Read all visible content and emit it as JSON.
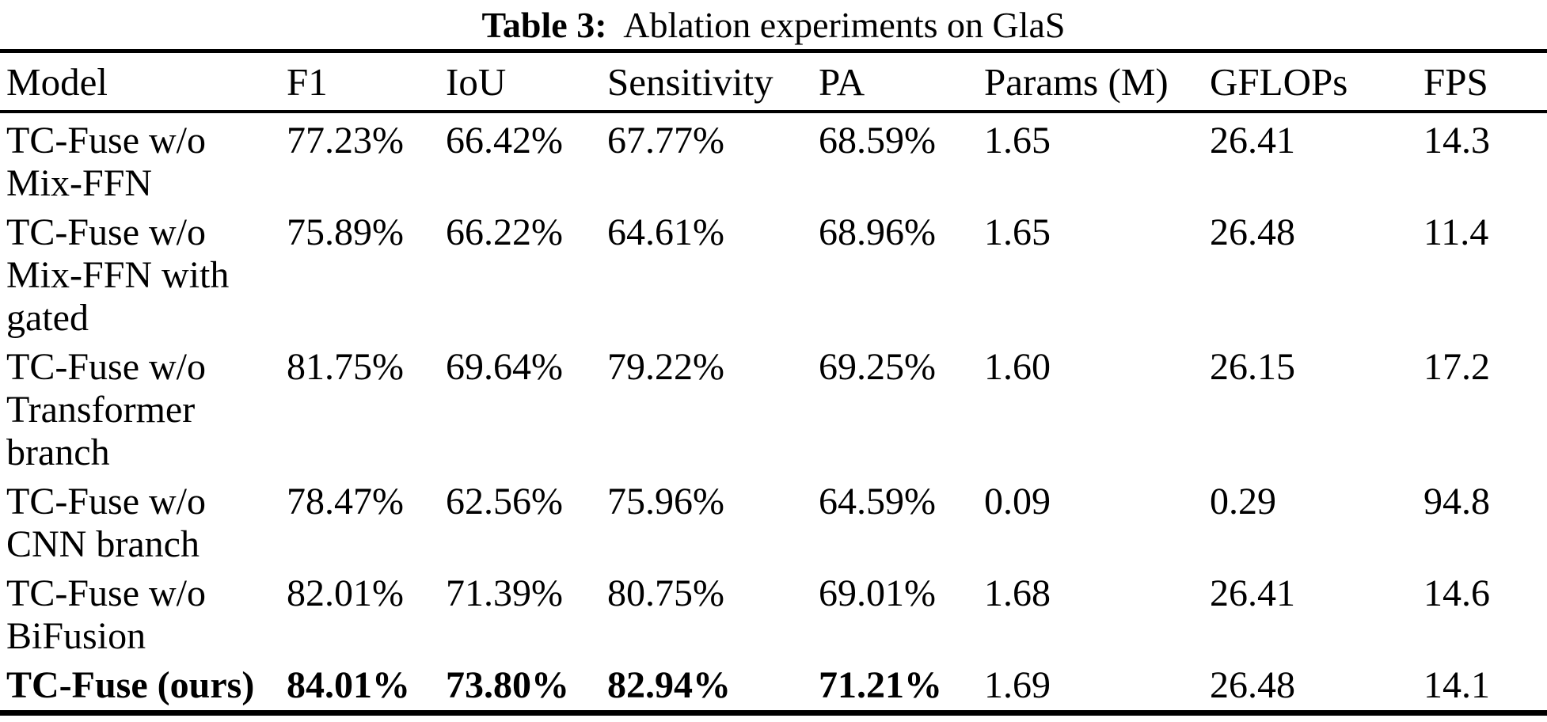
{
  "caption": {
    "label": "Table 3:",
    "text": "Ablation experiments on GlaS"
  },
  "table": {
    "columns": [
      "Model",
      "F1",
      "IoU",
      "Sensitivity",
      "PA",
      "Params (M)",
      "GFLOPs",
      "FPS"
    ],
    "rows": [
      {
        "model": "TC-Fuse w/o\nMix-FFN",
        "values": [
          "77.23%",
          "66.42%",
          "67.77%",
          "68.59%",
          "1.65",
          "26.41",
          "14.3"
        ],
        "emphasized": false
      },
      {
        "model": "TC-Fuse w/o\nMix-FFN with\ngated",
        "values": [
          "75.89%",
          "66.22%",
          "64.61%",
          "68.96%",
          "1.65",
          "26.48",
          "11.4"
        ],
        "emphasized": false
      },
      {
        "model": "TC-Fuse w/o\nTransformer\nbranch",
        "values": [
          "81.75%",
          "69.64%",
          "79.22%",
          "69.25%",
          "1.60",
          "26.15",
          "17.2"
        ],
        "emphasized": false
      },
      {
        "model": "TC-Fuse w/o\nCNN branch",
        "values": [
          "78.47%",
          "62.56%",
          "75.96%",
          "64.59%",
          "0.09",
          "0.29",
          "94.8"
        ],
        "emphasized": false
      },
      {
        "model": "TC-Fuse w/o\nBiFusion",
        "values": [
          "82.01%",
          "71.39%",
          "80.75%",
          "69.01%",
          "1.68",
          "26.41",
          "14.6"
        ],
        "emphasized": false
      },
      {
        "model": "TC-Fuse (ours)",
        "values": [
          "84.01%",
          "73.80%",
          "82.94%",
          "71.21%",
          "1.69",
          "26.48",
          "14.1"
        ],
        "emphasized": true
      }
    ],
    "emphasized_leading_cells": 5,
    "text_color": "#000000",
    "background_color": "#ffffff"
  }
}
